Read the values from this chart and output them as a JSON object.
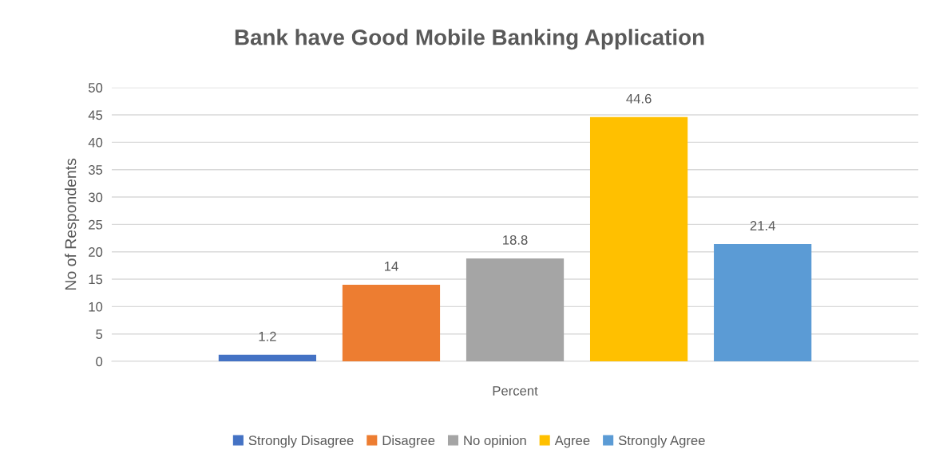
{
  "chart_data": {
    "type": "bar",
    "title": "Bank have Good Mobile Banking Application",
    "ylabel": "No of Respondents",
    "categories": [
      "Percent"
    ],
    "series": [
      {
        "name": "Strongly Disagree",
        "color": "#4472c4",
        "values": [
          1.2
        ]
      },
      {
        "name": "Disagree",
        "color": "#ed7d31",
        "values": [
          14
        ]
      },
      {
        "name": "No opinion",
        "color": "#a5a5a5",
        "values": [
          18.8
        ]
      },
      {
        "name": "Agree",
        "color": "#ffc000",
        "values": [
          44.6
        ]
      },
      {
        "name": "Strongly Agree",
        "color": "#5b9bd5",
        "values": [
          21.4
        ]
      }
    ],
    "ylim": [
      0,
      50
    ],
    "yticks": [
      0,
      5,
      10,
      15,
      20,
      25,
      30,
      35,
      40,
      45,
      50
    ],
    "grid": "y",
    "legend": "bottom",
    "data_labels": true
  }
}
